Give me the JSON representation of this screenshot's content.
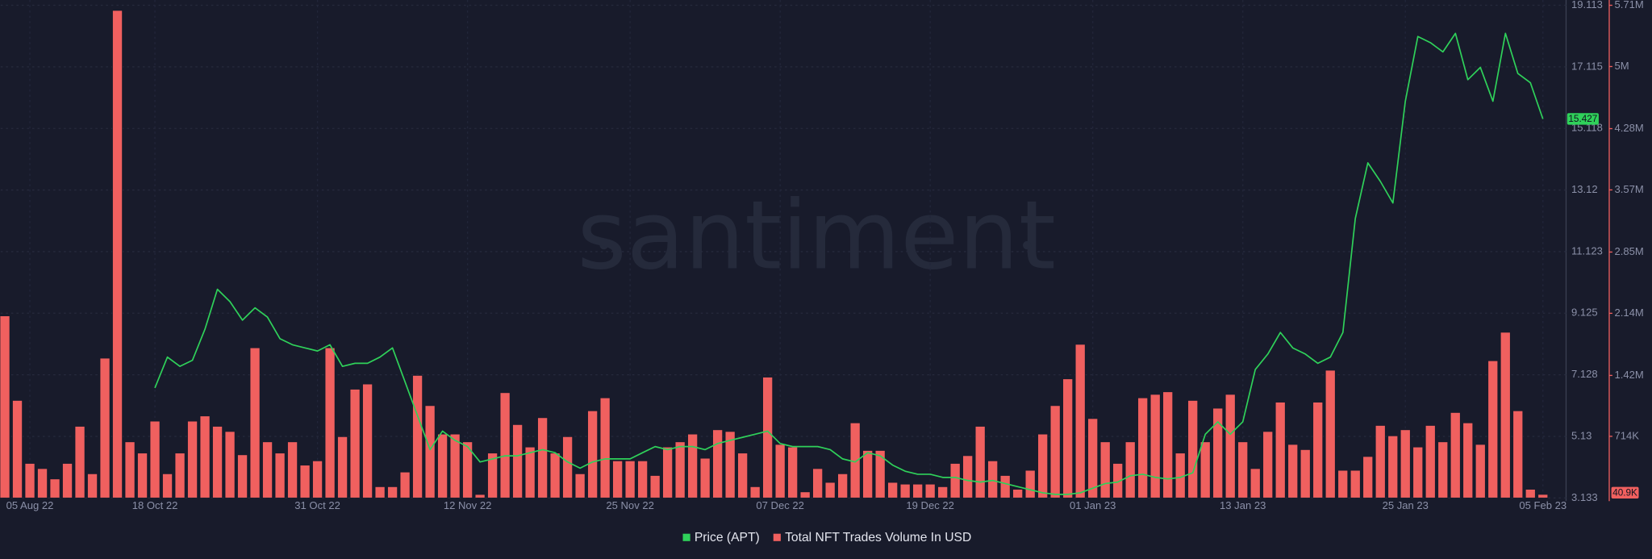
{
  "chart_data": {
    "type": "bar_line",
    "watermark": "santiment",
    "categories": [
      null,
      null,
      "05 Aug 22",
      null,
      null,
      null,
      null,
      null,
      null,
      null,
      null,
      null,
      "18 Oct 22",
      null,
      null,
      null,
      null,
      null,
      null,
      null,
      null,
      null,
      null,
      null,
      null,
      "31 Oct 22",
      null,
      null,
      null,
      null,
      null,
      null,
      null,
      null,
      null,
      null,
      null,
      "12 Nov 22",
      null,
      null,
      null,
      null,
      null,
      null,
      null,
      null,
      null,
      null,
      null,
      null,
      "25 Nov 22",
      null,
      null,
      null,
      null,
      null,
      null,
      null,
      null,
      null,
      null,
      null,
      "07 Dec 22",
      null,
      null,
      null,
      null,
      null,
      null,
      null,
      null,
      null,
      null,
      null,
      "19 Dec 22",
      null,
      null,
      null,
      null,
      null,
      null,
      null,
      null,
      null,
      null,
      null,
      null,
      "01 Jan 23",
      null,
      null,
      null,
      null,
      null,
      null,
      null,
      null,
      null,
      null,
      null,
      "13 Jan 23",
      null,
      null,
      null,
      null,
      null,
      null,
      null,
      null,
      null,
      null,
      null,
      null,
      "25 Jan 23",
      null,
      null,
      null,
      null,
      null,
      null,
      null,
      null,
      null,
      null,
      "05 Feb 23"
    ],
    "series": [
      {
        "name": "Price (APT)",
        "type": "line",
        "axis": "y",
        "color": "#2fd15a",
        "values": [
          null,
          null,
          null,
          null,
          null,
          null,
          null,
          null,
          null,
          null,
          null,
          null,
          6.7,
          7.7,
          7.4,
          7.6,
          8.6,
          9.9,
          9.5,
          8.9,
          9.3,
          9.0,
          8.3,
          8.1,
          8.0,
          7.9,
          8.1,
          7.4,
          7.5,
          7.5,
          7.7,
          8.0,
          6.9,
          5.8,
          4.7,
          5.3,
          5.0,
          4.8,
          4.3,
          4.4,
          4.5,
          4.5,
          4.6,
          4.7,
          4.6,
          4.3,
          4.1,
          4.3,
          4.4,
          4.4,
          4.4,
          4.6,
          4.8,
          4.7,
          4.8,
          4.8,
          4.7,
          4.9,
          5.0,
          5.1,
          5.2,
          5.3,
          4.9,
          4.8,
          4.8,
          4.8,
          4.7,
          4.4,
          4.3,
          4.6,
          4.5,
          4.2,
          4.0,
          3.9,
          3.9,
          3.8,
          3.8,
          3.7,
          3.65,
          3.7,
          3.6,
          3.5,
          3.4,
          3.3,
          3.25,
          3.25,
          3.3,
          3.45,
          3.6,
          3.65,
          3.85,
          3.9,
          3.8,
          3.75,
          3.8,
          3.95,
          5.2,
          5.6,
          5.2,
          5.6,
          7.3,
          7.8,
          8.5,
          8.0,
          7.8,
          7.5,
          7.7,
          8.5,
          12.2,
          14.0,
          13.4,
          12.7,
          16.0,
          18.1,
          17.9,
          17.6,
          18.2,
          16.7,
          17.1,
          16.0,
          18.2,
          16.9,
          16.6,
          15.427
        ]
      },
      {
        "name": "Total NFT Trades Volume In USD",
        "type": "bar",
        "axis": "y2",
        "color": "#f0605f",
        "values": [
          2110000,
          1130000,
          400000,
          340000,
          220000,
          400000,
          830000,
          280000,
          1620000,
          5650000,
          650000,
          520000,
          890000,
          280000,
          520000,
          890000,
          950000,
          830000,
          770000,
          500000,
          1740000,
          650000,
          520000,
          650000,
          380000,
          430000,
          1740000,
          710000,
          1260000,
          1320000,
          130000,
          130000,
          300000,
          1420000,
          1070000,
          740000,
          740000,
          650000,
          40000,
          520000,
          1220000,
          850000,
          590000,
          930000,
          520000,
          710000,
          280000,
          1010000,
          1160000,
          430000,
          430000,
          430000,
          260000,
          590000,
          650000,
          740000,
          460000,
          790000,
          770000,
          520000,
          130000,
          1400000,
          620000,
          590000,
          70000,
          340000,
          180000,
          280000,
          870000,
          550000,
          550000,
          180000,
          160000,
          160000,
          160000,
          130000,
          400000,
          490000,
          830000,
          430000,
          260000,
          100000,
          320000,
          740000,
          1070000,
          1380000,
          1780000,
          920000,
          650000,
          400000,
          650000,
          1160000,
          1200000,
          1230000,
          520000,
          1130000,
          650000,
          1040000,
          1200000,
          650000,
          340000,
          770000,
          1110000,
          620000,
          560000,
          1110000,
          1480000,
          320000,
          320000,
          480000,
          840000,
          720000,
          790000,
          590000,
          840000,
          650000,
          990000,
          870000,
          620000,
          1590000,
          1920000,
          1010000,
          100000,
          40900
        ],
        "value_labels": [
          null,
          null,
          null,
          null,
          null,
          null,
          null,
          null,
          null,
          null,
          null,
          null,
          null,
          null,
          null,
          null,
          null,
          null,
          null,
          null,
          null,
          null,
          null,
          null,
          null,
          null,
          null,
          null,
          null,
          null,
          null,
          null,
          null,
          null,
          null,
          null,
          null,
          null,
          null,
          null,
          null,
          null,
          null,
          null,
          null,
          null,
          null,
          null,
          null,
          null,
          null,
          null,
          null,
          null,
          null,
          null,
          null,
          null,
          null,
          null,
          null,
          null,
          null,
          null,
          null,
          null,
          null,
          null,
          null,
          null,
          null,
          null,
          null,
          null,
          null,
          null,
          null,
          null,
          null,
          null,
          null,
          null,
          null,
          null,
          null,
          null,
          null,
          null,
          null,
          null,
          null,
          null,
          null,
          null,
          null,
          null,
          null,
          null,
          null,
          null,
          null,
          null,
          null,
          null,
          null,
          null,
          null,
          null,
          null,
          null,
          null,
          null,
          null,
          null,
          null,
          null,
          null,
          null,
          null,
          null,
          null,
          null,
          null,
          "40.9K"
        ]
      }
    ],
    "ylim": [
      3.133,
      19.113
    ],
    "yticks": [
      3.133,
      5.13,
      7.128,
      9.125,
      11.123,
      13.12,
      15.118,
      17.115,
      19.113
    ],
    "y2lim": [
      0,
      5710000
    ],
    "y2ticks": [
      {
        "value": 714000,
        "label": "714K"
      },
      {
        "value": 1420000,
        "label": "1.42M"
      },
      {
        "value": 2140000,
        "label": "2.14M"
      },
      {
        "value": 2850000,
        "label": "2.85M"
      },
      {
        "value": 3570000,
        "label": "3.57M"
      },
      {
        "value": 4280000,
        "label": "4.28M"
      },
      {
        "value": 5000000,
        "label": "5M"
      },
      {
        "value": 5710000,
        "label": "5.71M"
      }
    ],
    "grid": true,
    "legend": "bottom"
  }
}
